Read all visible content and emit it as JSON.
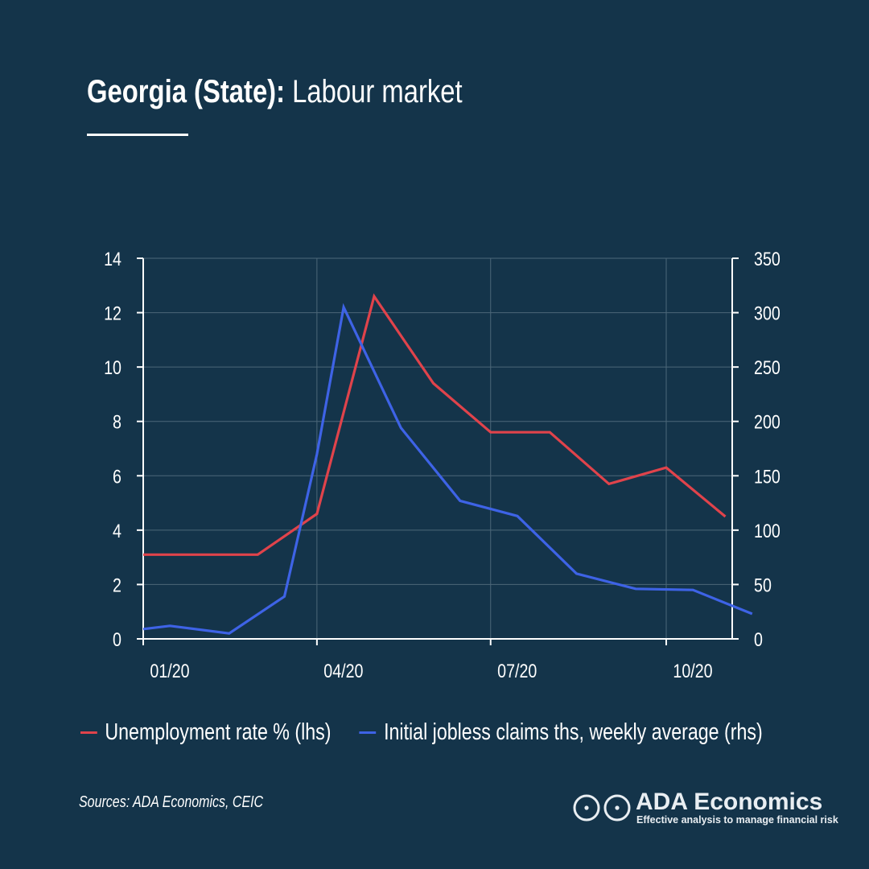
{
  "header": {
    "title_bold": "Georgia (State):",
    "title_light": "Labour market"
  },
  "chart_data": {
    "type": "line",
    "x": [
      "2020-01",
      "2020-02",
      "2020-03",
      "2020-04",
      "2020-05",
      "2020-06",
      "2020-07",
      "2020-08",
      "2020-09",
      "2020-10",
      "2020-11"
    ],
    "x_tick_labels": [
      "01/20",
      "04/20",
      "07/20",
      "10/20"
    ],
    "y_left": {
      "range": [
        0,
        14
      ],
      "ticks": [
        0,
        2,
        4,
        6,
        8,
        10,
        12,
        14
      ]
    },
    "y_right": {
      "range": [
        0,
        350
      ],
      "ticks": [
        0,
        50,
        100,
        150,
        200,
        250,
        300,
        350
      ]
    },
    "grid": true,
    "legend_position": "bottom",
    "series": [
      {
        "name": "Unemployment rate % (lhs)",
        "axis": "left",
        "color": "#e0434b",
        "points": [
          {
            "x": "2020-01-01",
            "y": 3.1
          },
          {
            "x": "2020-02-01",
            "y": 3.1
          },
          {
            "x": "2020-03-01",
            "y": 3.1
          },
          {
            "x": "2020-04-01",
            "y": 4.6
          },
          {
            "x": "2020-05-01",
            "y": 12.6
          },
          {
            "x": "2020-06-01",
            "y": 9.4
          },
          {
            "x": "2020-07-01",
            "y": 7.6
          },
          {
            "x": "2020-08-01",
            "y": 7.6
          },
          {
            "x": "2020-09-01",
            "y": 5.7
          },
          {
            "x": "2020-10-01",
            "y": 6.3
          },
          {
            "x": "2020-11-01",
            "y": 4.5
          }
        ]
      },
      {
        "name": "Initial jobless claims ths, weekly average (rhs)",
        "axis": "right",
        "color": "#3e63e6",
        "points": [
          {
            "x": "2020-01-01",
            "y": 9
          },
          {
            "x": "2020-01-15",
            "y": 12
          },
          {
            "x": "2020-02-15",
            "y": 5
          },
          {
            "x": "2020-03-15",
            "y": 39
          },
          {
            "x": "2020-04-01",
            "y": 170
          },
          {
            "x": "2020-04-15",
            "y": 305
          },
          {
            "x": "2020-05-15",
            "y": 194
          },
          {
            "x": "2020-06-15",
            "y": 127
          },
          {
            "x": "2020-07-15",
            "y": 113
          },
          {
            "x": "2020-08-15",
            "y": 60
          },
          {
            "x": "2020-09-15",
            "y": 46
          },
          {
            "x": "2020-10-15",
            "y": 45
          },
          {
            "x": "2020-11-15",
            "y": 23
          }
        ]
      }
    ]
  },
  "footer": {
    "source": "Sources: ADA Economics, CEIC",
    "brand_name": "ADA Economics",
    "brand_tagline": "Effective analysis to manage financial risk",
    "logo_icon": "double-circle-logo-icon"
  }
}
